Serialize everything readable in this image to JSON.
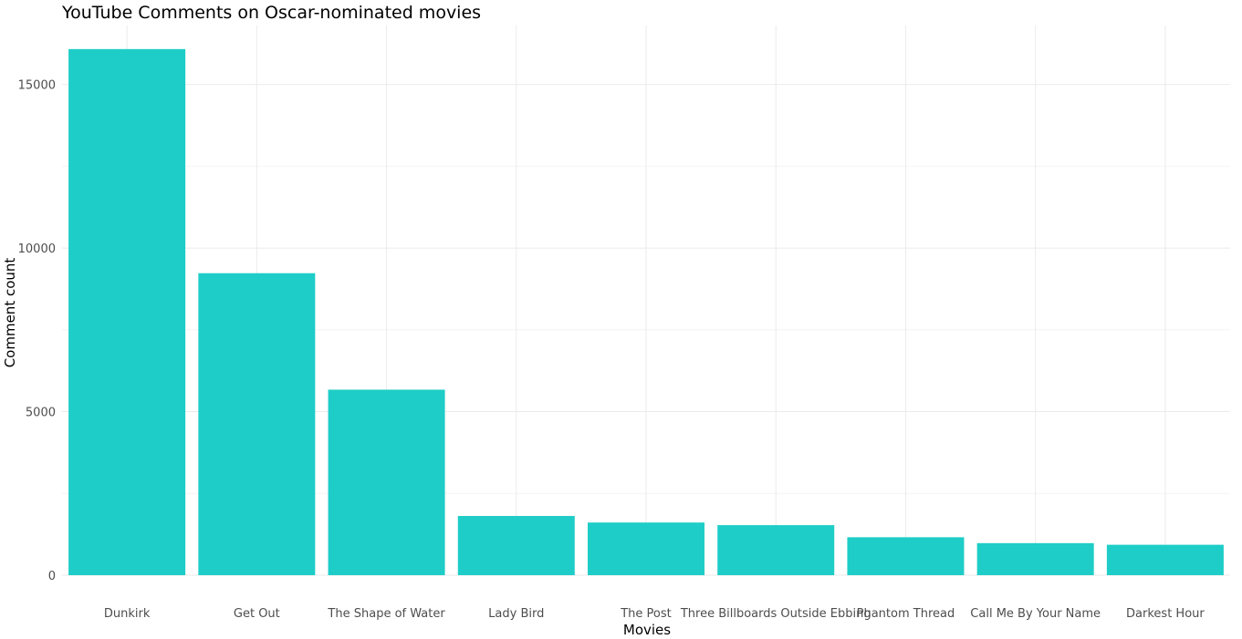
{
  "chart_data": {
    "type": "bar",
    "title": "YouTube Comments on Oscar-nominated movies",
    "xlabel": "Movies",
    "ylabel": "Comment count",
    "categories": [
      "Dunkirk",
      "Get Out",
      "The Shape of Water",
      "Lady Bird",
      "The Post",
      "Three Billboards Outside Ebbing",
      "Phantom Thread",
      "Call Me By Your Name",
      "Darkest Hour"
    ],
    "values": [
      16080,
      9230,
      5670,
      1810,
      1610,
      1530,
      1160,
      980,
      930
    ],
    "yticks": [
      0,
      5000,
      10000,
      15000
    ],
    "ylim": [
      0,
      16800
    ],
    "grid": true,
    "legend": "none",
    "colors": {
      "bar": "#1ECDC7",
      "grid_major": "#EBEBEB",
      "grid_minor": "#F4F4F4"
    }
  }
}
